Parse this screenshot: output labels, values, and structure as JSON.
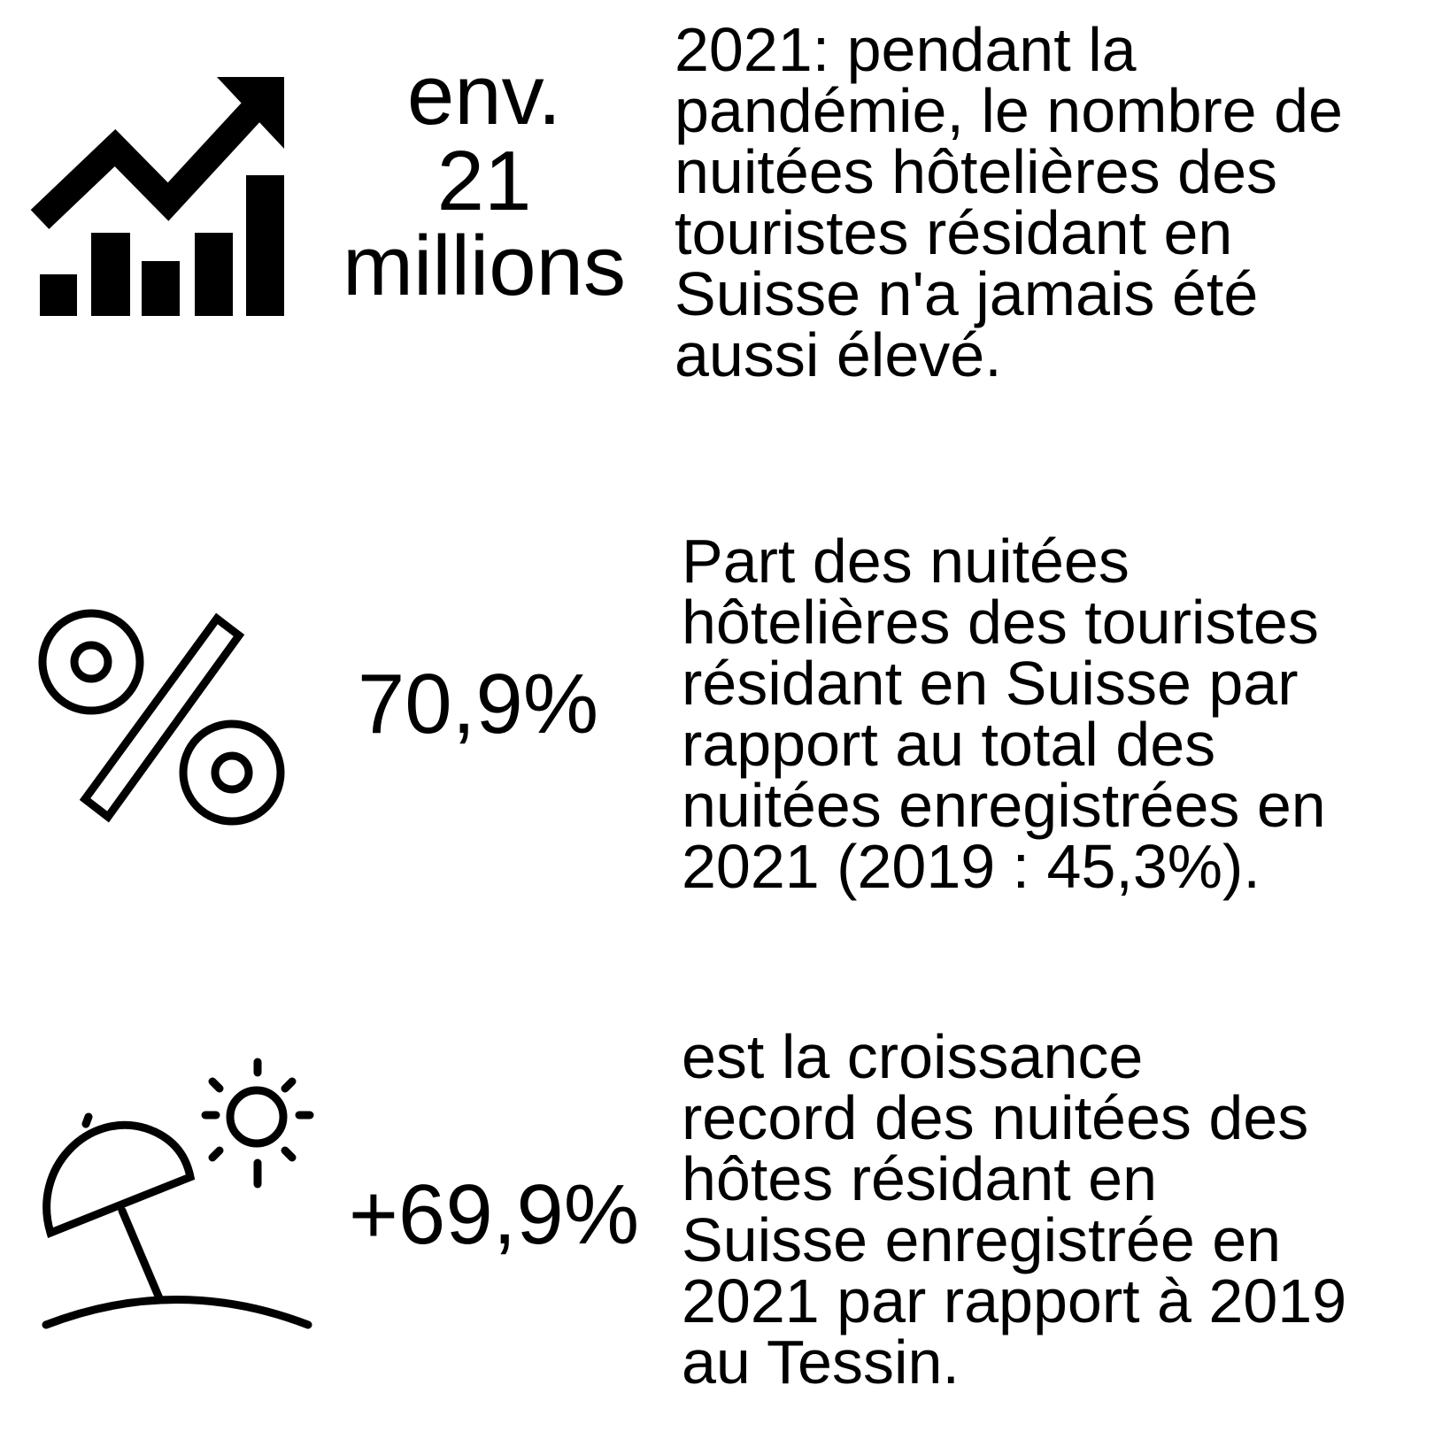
{
  "items": [
    {
      "stat": [
        "env.",
        "21",
        "millions"
      ],
      "text": [
        "2021: pendant la",
        "pandémie, le nombre de",
        "nuitées hôtelières des",
        "touristes résidant en",
        "Suisse n'a jamais été",
        "aussi élevé."
      ]
    },
    {
      "stat": [
        "70,9%"
      ],
      "text": [
        "Part des nuitées",
        "hôtelières des touristes",
        "résidant en Suisse par",
        "rapport au total des",
        "nuitées enregistrées en",
        "2021 (2019 : 45,3%)."
      ]
    },
    {
      "stat": [
        "+69,9%"
      ],
      "text": [
        "est la croissance",
        "record des nuitées des",
        "hôtes résidant en",
        "Suisse enregistrée en",
        "2021 par rapport à 2019",
        "au Tessin."
      ]
    }
  ]
}
